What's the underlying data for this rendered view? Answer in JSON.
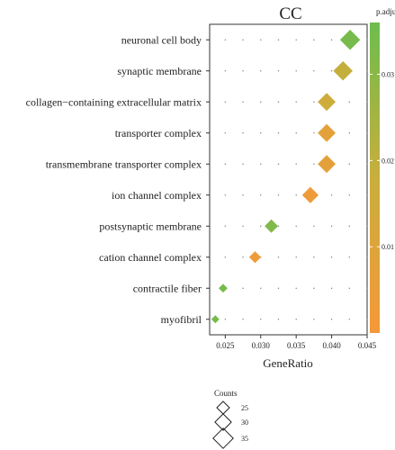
{
  "chart_data": {
    "type": "scatter",
    "title": "CC",
    "xlabel": "GeneRatio",
    "ylabel": "",
    "xlim": [
      0.0228,
      0.045
    ],
    "xticks": [
      0.025,
      0.03,
      0.035,
      0.04,
      0.045
    ],
    "xtick_labels": [
      "0.025",
      "0.030",
      "0.035",
      "0.040",
      "0.045"
    ],
    "categories": [
      "neuronal cell body",
      "synaptic membrane",
      "collagen−containing extracellular matrix",
      "transporter complex",
      "transmembrane transporter complex",
      "ion channel complex",
      "postsynaptic membrane",
      "cation channel complex",
      "contractile fiber",
      "myofibril"
    ],
    "points": [
      {
        "term": "neuronal cell body",
        "gene_ratio": 0.0426,
        "count": 35,
        "p_adjust": 0.034
      },
      {
        "term": "synaptic membrane",
        "gene_ratio": 0.0416,
        "count": 34,
        "p_adjust": 0.019
      },
      {
        "term": "collagen−containing extracellular matrix",
        "gene_ratio": 0.0393,
        "count": 32,
        "p_adjust": 0.016
      },
      {
        "term": "transporter complex",
        "gene_ratio": 0.0393,
        "count": 32,
        "p_adjust": 0.007
      },
      {
        "term": "transmembrane transporter complex",
        "gene_ratio": 0.0393,
        "count": 32,
        "p_adjust": 0.007
      },
      {
        "term": "ion channel complex",
        "gene_ratio": 0.037,
        "count": 30,
        "p_adjust": 0.003
      },
      {
        "term": "postsynaptic membrane",
        "gene_ratio": 0.0315,
        "count": 26,
        "p_adjust": 0.032
      },
      {
        "term": "cation channel complex",
        "gene_ratio": 0.0292,
        "count": 24,
        "p_adjust": 0.003
      },
      {
        "term": "contractile fiber",
        "gene_ratio": 0.0247,
        "count": 20,
        "p_adjust": 0.034
      },
      {
        "term": "myofibril",
        "gene_ratio": 0.0236,
        "count": 19,
        "p_adjust": 0.034
      }
    ],
    "color_legend": {
      "title": "p.adjust",
      "range": [
        0.0,
        0.036
      ],
      "ticks": [
        0.01,
        0.02,
        0.03
      ],
      "tick_labels": [
        "0.01",
        "0.02",
        "0.03"
      ],
      "low_color": "#f5983a",
      "mid_color": "#c9ae3c",
      "high_color": "#6cbd4e"
    },
    "size_legend": {
      "title": "Counts",
      "values": [
        25,
        30,
        35
      ],
      "labels": [
        "25",
        "30",
        "35"
      ]
    },
    "grid": true,
    "legend_placement": "right"
  }
}
